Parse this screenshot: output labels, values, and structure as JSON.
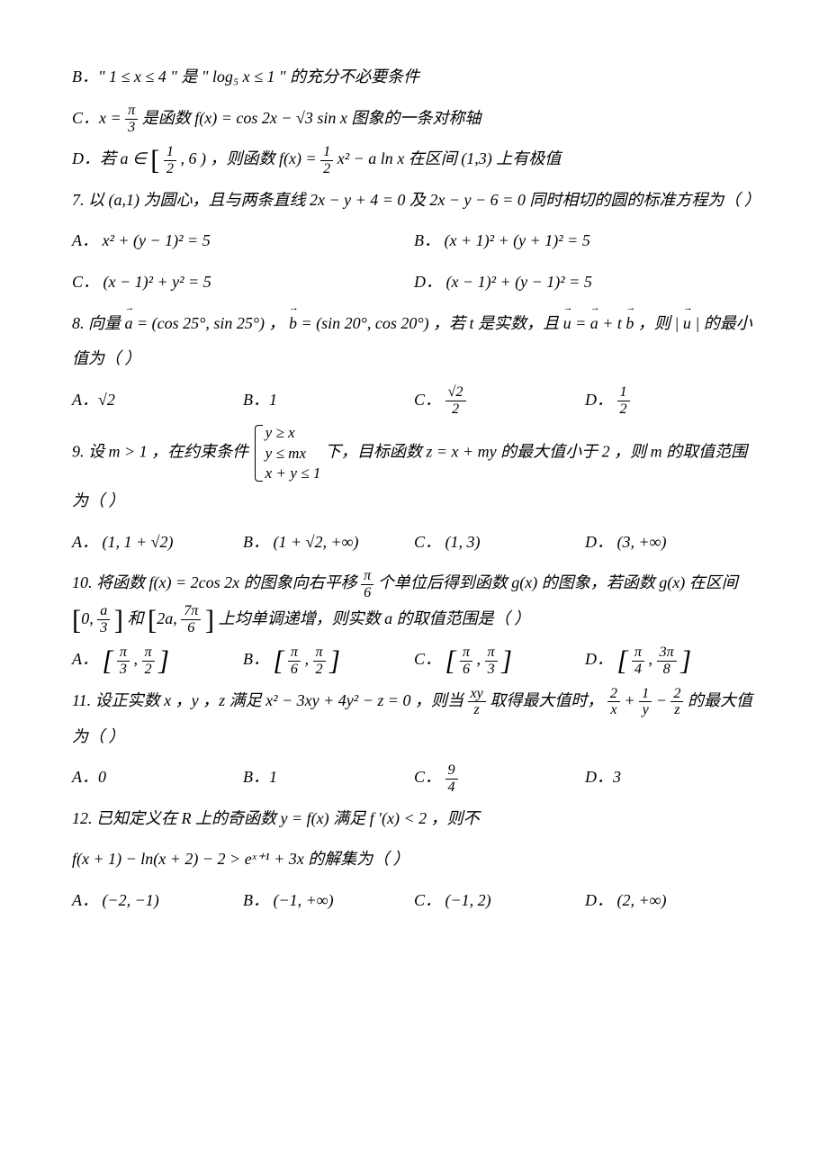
{
  "fonts": {
    "body_family": "Times New Roman / SimSun",
    "body_size_pt": 14,
    "line_height": 2.2
  },
  "colors": {
    "text": "#000000",
    "background": "#ffffff"
  },
  "items": {
    "pre_b": "B．\" 1 ≤ x ≤ 4 \" 是 \" log₅ x ≤ 1 \" 的充分不必要条件",
    "pre_c_a": "C．x = ",
    "pre_c_num": "π",
    "pre_c_den": "3",
    "pre_c_b": " 是函数 f(x) = cos 2x − √3 sin x 图象的一条对称轴",
    "pre_d_a": "D．若 a ∈ ",
    "pre_d_interval_l": "[",
    "pre_d_interval_num": "1",
    "pre_d_interval_den": "2",
    "pre_d_interval_r": ", 6 )",
    "pre_d_b": "，则函数 f(x) = ",
    "pre_d_num2": "1",
    "pre_d_den2": "2",
    "pre_d_c": " x² − a ln x 在区间 (1,3) 上有极值",
    "q7_stem": "7. 以 (a,1) 为圆心，且与两条直线 2x − y + 4 = 0 及 2x − y − 6 = 0 同时相切的圆的标准方程为（    ）",
    "q7_A": "A． x² + (y − 1)² = 5",
    "q7_B": "B． (x + 1)² + (y + 1)² = 5",
    "q7_C": "C． (x − 1)² + y² = 5",
    "q7_D": "D． (x − 1)² + (y − 1)² = 5",
    "q8_stem_a": "8. 向量 ",
    "q8_a": "a",
    "q8_stem_b": " = (cos 25°, sin 25°) ， ",
    "q8_bvec": "b",
    "q8_stem_c": " = (sin 20°, cos 20°) ，若 t 是实数，且 ",
    "q8_u": "u",
    "q8_stem_d": " = ",
    "q8_stem_e": " + t",
    "q8_stem_f": " ，则 | ",
    "q8_stem_g": " | 的最小值为（    ）",
    "q8_A": "A．√2",
    "q8_B": "B．1",
    "q8_C_lbl": "C．",
    "q8_C_num": "√2",
    "q8_C_den": "2",
    "q8_D_lbl": "D．",
    "q8_D_num": "1",
    "q8_D_den": "2",
    "q9_stem_a": "9. 设 m > 1 ，在约束条件 ",
    "q9_sys1": "y ≥ x",
    "q9_sys2": "y ≤ mx",
    "q9_sys3": "x + y ≤ 1",
    "q9_stem_b": " 下，目标函数 z = x + my 的最大值小于 2 ，则 m 的取值范围为（    ）",
    "q9_A": "A． (1, 1 + √2)",
    "q9_B": "B． (1 + √2, +∞)",
    "q9_C": "C． (1, 3)",
    "q9_D": "D． (3, +∞)",
    "q10_stem_a": "10. 将函数 f(x) = 2cos 2x 的图象向右平移 ",
    "q10_num1": "π",
    "q10_den1": "6",
    "q10_stem_b": " 个单位后得到函数 g(x) 的图象，若函数 g(x) 在区间 ",
    "q10_lb1": "[ 0, ",
    "q10_num2": "a",
    "q10_den2": "3",
    "q10_rb1": " ]",
    "q10_and": " 和 ",
    "q10_lb2": "[ 2a, ",
    "q10_num3": "7π",
    "q10_den3": "6",
    "q10_rb2": " ]",
    "q10_stem_c": " 上均单调递增，则实数 a 的取值范围是（    ）",
    "q10_A_lbl": "A．",
    "q10_A_l": "[ ",
    "q10_A_n1": "π",
    "q10_A_d1": "3",
    "q10_A_c": ", ",
    "q10_A_n2": "π",
    "q10_A_d2": "2",
    "q10_A_r": " ]",
    "q10_B_lbl": "B．",
    "q10_B_n1": "π",
    "q10_B_d1": "6",
    "q10_B_n2": "π",
    "q10_B_d2": "2",
    "q10_C_lbl": "C．",
    "q10_C_n1": "π",
    "q10_C_d1": "6",
    "q10_C_n2": "π",
    "q10_C_d2": "3",
    "q10_D_lbl": "D．",
    "q10_D_n1": "π",
    "q10_D_d1": "4",
    "q10_D_n2": "3π",
    "q10_D_d2": "8",
    "q11_stem_a": "11. 设正实数 x ，y ，z 满足 x² − 3xy + 4y² − z = 0 ，则当 ",
    "q11_num1": "xy",
    "q11_den1": "z",
    "q11_stem_b": " 取得最大值时，",
    "q11_num2": "2",
    "q11_den2": "x",
    "q11_plus1": " + ",
    "q11_num3": "1",
    "q11_den3": "y",
    "q11_minus": " − ",
    "q11_num4": "2",
    "q11_den4": "z",
    "q11_stem_c": " 的最大值为（    ）",
    "q11_A": "A．0",
    "q11_B": "B．1",
    "q11_C_lbl": "C．",
    "q11_C_num": "9",
    "q11_C_den": "4",
    "q11_D": "D．3",
    "q12_stem_a": "12. 已知定义在 R 上的奇函数 y = f(x) 满足 f ′(x) < 2 ，则不",
    "q12_stem_b": "f(x + 1) − ln(x + 2) − 2 > eˣ⁺¹ + 3x 的解集为（    ）",
    "q12_A": "A． (−2, −1)",
    "q12_B": "B． (−1, +∞)",
    "q12_C": "C． (−1, 2)",
    "q12_D": "D． (2, +∞)"
  }
}
